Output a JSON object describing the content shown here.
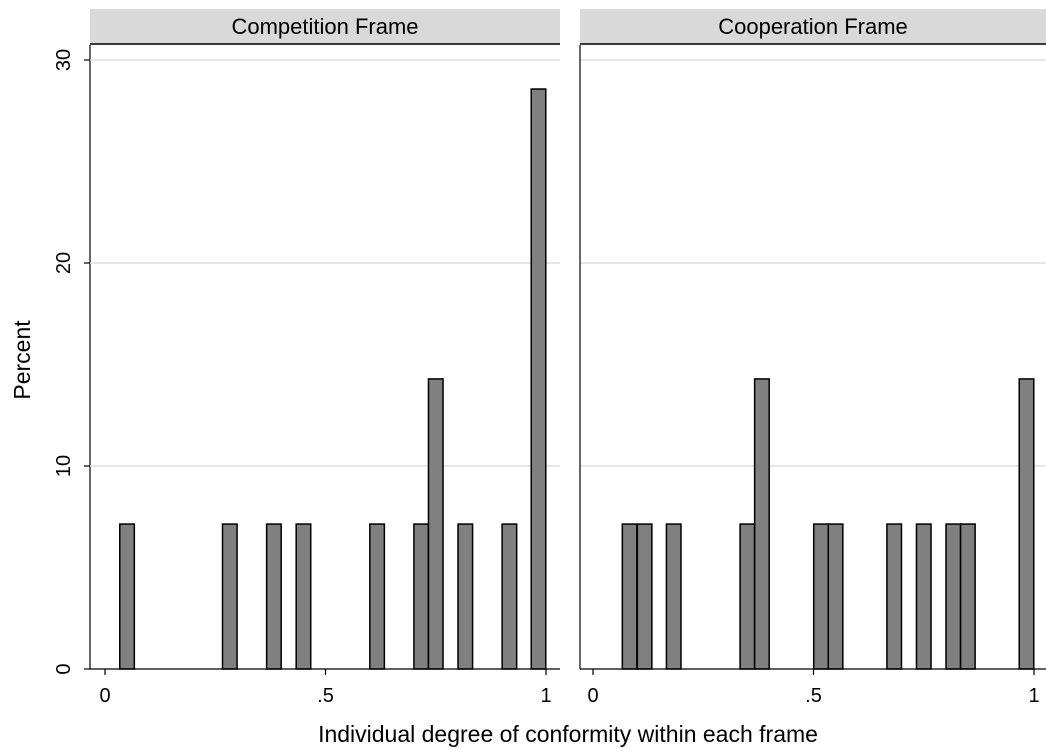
{
  "chart_data": {
    "type": "bar",
    "xlabel": "Individual degree of conformity within each frame",
    "ylabel": "Percent",
    "xlim": [
      0,
      1
    ],
    "ylim": [
      0,
      30
    ],
    "x_ticks": [
      "0",
      ".5",
      "1"
    ],
    "y_ticks": [
      "0",
      "10",
      "20",
      "30"
    ],
    "grid": true,
    "bar_color": "#808080",
    "bin_width": 0.033,
    "panels": [
      {
        "title": "Competition Frame",
        "bars": [
          {
            "x": 0.05,
            "value": 7.14
          },
          {
            "x": 0.283,
            "value": 7.14
          },
          {
            "x": 0.383,
            "value": 7.14
          },
          {
            "x": 0.45,
            "value": 7.14
          },
          {
            "x": 0.617,
            "value": 7.14
          },
          {
            "x": 0.717,
            "value": 7.14
          },
          {
            "x": 0.75,
            "value": 14.29
          },
          {
            "x": 0.817,
            "value": 7.14
          },
          {
            "x": 0.917,
            "value": 7.14
          },
          {
            "x": 0.983,
            "value": 28.57
          }
        ]
      },
      {
        "title": "Cooperation Frame",
        "bars": [
          {
            "x": 0.083,
            "value": 7.14
          },
          {
            "x": 0.117,
            "value": 7.14
          },
          {
            "x": 0.183,
            "value": 7.14
          },
          {
            "x": 0.35,
            "value": 7.14
          },
          {
            "x": 0.383,
            "value": 14.29
          },
          {
            "x": 0.517,
            "value": 7.14
          },
          {
            "x": 0.55,
            "value": 7.14
          },
          {
            "x": 0.683,
            "value": 7.14
          },
          {
            "x": 0.75,
            "value": 7.14
          },
          {
            "x": 0.817,
            "value": 7.14
          },
          {
            "x": 0.85,
            "value": 7.14
          },
          {
            "x": 0.983,
            "value": 14.29
          }
        ]
      }
    ]
  }
}
